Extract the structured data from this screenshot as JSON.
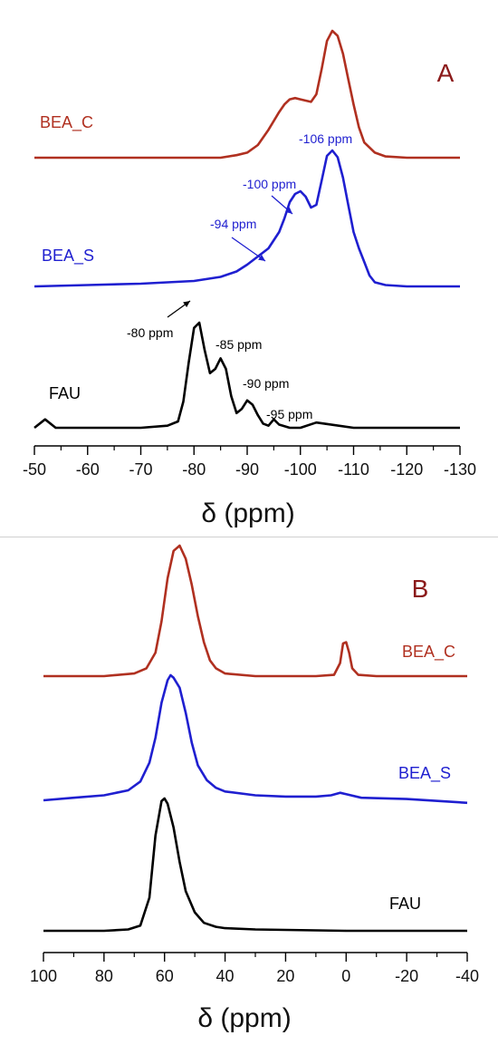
{
  "chart_data": [
    {
      "type": "line",
      "panel_label": "A",
      "xlabel": "δ (ppm)",
      "xlim": [
        -50,
        -130
      ],
      "x_ticks": [
        -50,
        -60,
        -70,
        -80,
        -90,
        -100,
        -110,
        -120,
        -130
      ],
      "x_tick_labels": [
        "-50",
        "-60",
        "-70",
        "-80",
        "-90",
        "-100",
        "-110",
        "-120",
        "-130"
      ],
      "series": [
        {
          "name": "BEA_C",
          "color": "#b03020",
          "x": [
            -50,
            -60,
            -70,
            -80,
            -85,
            -88,
            -90,
            -92,
            -94,
            -96,
            -97,
            -98,
            -99,
            -100,
            -101,
            -102,
            -103,
            -104,
            -105,
            -106,
            -107,
            -108,
            -109,
            -110,
            -111,
            -112,
            -114,
            -116,
            -120,
            -125,
            -130
          ],
          "y": [
            0.0,
            0.0,
            0.0,
            0.0,
            0.0,
            0.02,
            0.04,
            0.1,
            0.22,
            0.36,
            0.42,
            0.46,
            0.47,
            0.46,
            0.45,
            0.44,
            0.5,
            0.7,
            0.92,
            1.0,
            0.96,
            0.82,
            0.62,
            0.42,
            0.24,
            0.12,
            0.04,
            0.01,
            0.0,
            0.0,
            0.0
          ]
        },
        {
          "name": "BEA_S",
          "color": "#1f1fd0",
          "x": [
            -50,
            -60,
            -70,
            -80,
            -85,
            -88,
            -90,
            -92,
            -94,
            -95,
            -96,
            -97,
            -98,
            -99,
            -100,
            -101,
            -102,
            -103,
            -104,
            -105,
            -106,
            -107,
            -108,
            -109,
            -110,
            -111,
            -112,
            -113,
            -114,
            -116,
            -120,
            -125,
            -130
          ],
          "y": [
            0.0,
            0.01,
            0.02,
            0.04,
            0.07,
            0.11,
            0.16,
            0.22,
            0.28,
            0.34,
            0.4,
            0.5,
            0.62,
            0.68,
            0.7,
            0.66,
            0.58,
            0.6,
            0.78,
            0.96,
            1.0,
            0.95,
            0.8,
            0.6,
            0.4,
            0.28,
            0.18,
            0.08,
            0.03,
            0.01,
            0.0,
            0.0,
            0.0
          ]
        },
        {
          "name": "FAU",
          "color": "#000000",
          "x": [
            -50,
            -52,
            -54,
            -60,
            -70,
            -75,
            -77,
            -78,
            -79,
            -80,
            -81,
            -82,
            -83,
            -84,
            -85,
            -86,
            -87,
            -88,
            -89,
            -90,
            -91,
            -92,
            -93,
            -94,
            -95,
            -96,
            -98,
            -100,
            -103,
            -110,
            -120,
            -130
          ],
          "y": [
            0.0,
            0.08,
            0.0,
            0.0,
            0.0,
            0.02,
            0.06,
            0.25,
            0.62,
            0.95,
            1.0,
            0.74,
            0.52,
            0.56,
            0.66,
            0.56,
            0.3,
            0.14,
            0.18,
            0.26,
            0.22,
            0.12,
            0.04,
            0.02,
            0.08,
            0.03,
            0.0,
            0.0,
            0.05,
            0.0,
            0.0,
            0.0
          ]
        }
      ],
      "annotations": [
        {
          "text": "-80 ppm",
          "series": "FAU",
          "x": -80,
          "color": "#000000"
        },
        {
          "text": "-85 ppm",
          "series": "FAU",
          "x": -85,
          "color": "#000000"
        },
        {
          "text": "-90 ppm",
          "series": "FAU",
          "x": -90,
          "color": "#000000"
        },
        {
          "text": "-95 ppm",
          "series": "FAU",
          "x": -95,
          "color": "#000000"
        },
        {
          "text": "-94 ppm",
          "series": "BEA_S",
          "x": -94,
          "color": "#1f1fd0"
        },
        {
          "text": "-100 ppm",
          "series": "BEA_S",
          "x": -100,
          "color": "#1f1fd0"
        },
        {
          "text": "-106 ppm",
          "series": "BEA_S",
          "x": -106,
          "color": "#1f1fd0"
        }
      ]
    },
    {
      "type": "line",
      "panel_label": "B",
      "xlabel": "δ (ppm)",
      "xlim": [
        100,
        -40
      ],
      "x_ticks": [
        100,
        80,
        60,
        40,
        20,
        0,
        -20,
        -40
      ],
      "x_tick_labels": [
        "100",
        "80",
        "60",
        "40",
        "20",
        "0",
        "-20",
        "-40"
      ],
      "series": [
        {
          "name": "BEA_C",
          "color": "#b03020",
          "x": [
            100,
            80,
            70,
            66,
            63,
            61,
            59,
            57,
            55,
            53,
            51,
            49,
            47,
            45,
            43,
            40,
            30,
            10,
            4,
            2,
            1,
            0,
            -1,
            -2,
            -4,
            -10,
            -40
          ],
          "y": [
            0.0,
            0.0,
            0.02,
            0.06,
            0.18,
            0.42,
            0.75,
            0.96,
            1.0,
            0.9,
            0.7,
            0.46,
            0.26,
            0.12,
            0.06,
            0.02,
            0.0,
            0.0,
            0.01,
            0.1,
            0.25,
            0.26,
            0.18,
            0.06,
            0.01,
            0.0,
            0.0
          ]
        },
        {
          "name": "BEA_S",
          "color": "#1f1fd0",
          "x": [
            100,
            90,
            80,
            72,
            68,
            65,
            63,
            61,
            59,
            58,
            57,
            55,
            53,
            51,
            49,
            46,
            43,
            40,
            30,
            20,
            10,
            5,
            2,
            -5,
            -20,
            -40
          ],
          "y": [
            0.0,
            0.02,
            0.04,
            0.08,
            0.15,
            0.3,
            0.5,
            0.78,
            0.96,
            1.0,
            0.98,
            0.9,
            0.7,
            0.46,
            0.28,
            0.16,
            0.1,
            0.07,
            0.04,
            0.03,
            0.03,
            0.04,
            0.06,
            0.02,
            0.01,
            -0.02
          ]
        },
        {
          "name": "FAU",
          "color": "#000000",
          "x": [
            100,
            80,
            72,
            68,
            65,
            63,
            61,
            60,
            59,
            57,
            55,
            53,
            50,
            47,
            43,
            40,
            30,
            0,
            -40
          ],
          "y": [
            0.0,
            0.0,
            0.01,
            0.04,
            0.25,
            0.72,
            0.98,
            1.0,
            0.96,
            0.78,
            0.52,
            0.3,
            0.14,
            0.06,
            0.03,
            0.02,
            0.01,
            0.0,
            0.0
          ]
        }
      ]
    }
  ]
}
